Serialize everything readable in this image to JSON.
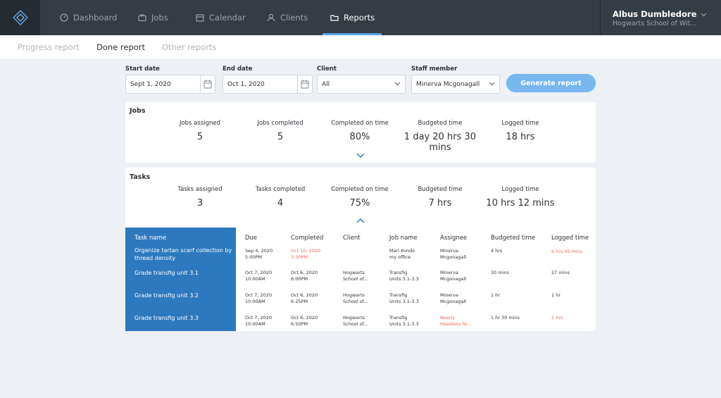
{
  "nav": {
    "items": [
      {
        "label": "Dashboard",
        "icon": "dashboard-icon"
      },
      {
        "label": "Jobs",
        "icon": "briefcase-icon"
      },
      {
        "label": "Calendar",
        "icon": "calendar-icon"
      },
      {
        "label": "Clients",
        "icon": "user-icon"
      },
      {
        "label": "Reports",
        "icon": "folder-icon"
      }
    ],
    "active": "Reports",
    "user_name": "Albus Dumbledore",
    "user_org": "Hogwarts School of Wit..."
  },
  "subtabs": [
    "Progress report",
    "Done report",
    "Other reports"
  ],
  "filters": {
    "start_label": "Start date",
    "start_value": "Sept 1, 2020",
    "end_label": "End date",
    "end_value": "Oct 1, 2020",
    "client_label": "Client",
    "client_value": "All",
    "staff_label": "Staff member",
    "staff_value": "Minerva Mcgonagall",
    "generate_label": "Generate report"
  },
  "jobs": {
    "title": "Jobs",
    "stats": [
      {
        "label": "Jobs assigned",
        "value": "5"
      },
      {
        "label": "Jobs completed",
        "value": "5"
      },
      {
        "label": "Completed on time",
        "value": "80%"
      },
      {
        "label": "Budgeted time",
        "value": "1 day 20 hrs 30 mins"
      },
      {
        "label": "Logged time",
        "value": "18 hrs"
      }
    ]
  },
  "tasks": {
    "title": "Tasks",
    "stats": [
      {
        "label": "Tasks assigned",
        "value": "3"
      },
      {
        "label": "Tasks completed",
        "value": "4"
      },
      {
        "label": "Completed on time",
        "value": "75%"
      },
      {
        "label": "Budgeted time",
        "value": "7 hrs"
      },
      {
        "label": "Logged time",
        "value": "10 hrs 12 mins"
      }
    ],
    "columns": [
      "Task name",
      "Due",
      "Completed",
      "Client",
      "Job name",
      "Assignee",
      "Budgeted time",
      "Logged time"
    ],
    "rows": [
      {
        "name": "Organize tartan scarf collection by thread density",
        "due": [
          "Sep 4, 2020",
          "5:00PM"
        ],
        "completed": [
          "Oct 10, 2020",
          "3:30PM"
        ],
        "client": [
          "",
          ""
        ],
        "job": [
          "Mari Kondo",
          "my office"
        ],
        "assignee": [
          "Minerva",
          "Mcgonagall"
        ],
        "budgeted": "4 hrs",
        "logged": "6 hrs 45 mins"
      },
      {
        "name": "Grade transfig unit 3.1",
        "due": [
          "Oct 7, 2020",
          "10:00AM"
        ],
        "completed": [
          "Oct 6, 2020",
          "6:00PM"
        ],
        "client": [
          "Hogwarts",
          "School of..."
        ],
        "job": [
          "Transfig",
          "Units 3.1-3.3"
        ],
        "assignee": [
          "Minerva",
          "Mcgonagall"
        ],
        "budgeted": "30 mins",
        "logged": "27 mins"
      },
      {
        "name": "Grade transfig unit 3.2",
        "due": [
          "Oct 7, 2020",
          "10:00AM"
        ],
        "completed": [
          "Oct 6, 2020",
          "6:25PM"
        ],
        "client": [
          "Hogwarts",
          "School of..."
        ],
        "job": [
          "Transfig",
          "Units 3.1-3.3"
        ],
        "assignee": [
          "Minerva",
          "Mcgonagall"
        ],
        "budgeted": "1 hr",
        "logged": "1 hr"
      },
      {
        "name": "Grade transfig unit 3.3",
        "due": [
          "Oct 7, 2020",
          "10:00AM"
        ],
        "completed": [
          "Oct 6, 2020",
          "6:50PM"
        ],
        "client": [
          "Hogwarts",
          "School of..."
        ],
        "job": [
          "Transfig",
          "Units 3.1-3.3"
        ],
        "assignee": [
          "Nearly",
          "Headless Ni..."
        ],
        "budgeted": "1 hr 30 mins",
        "logged": "2 hrs"
      }
    ]
  },
  "colors": {
    "nav_bg": "#363c44",
    "accent": "#2d79bf",
    "button": "#78b7f0",
    "late": "#f2685a"
  }
}
